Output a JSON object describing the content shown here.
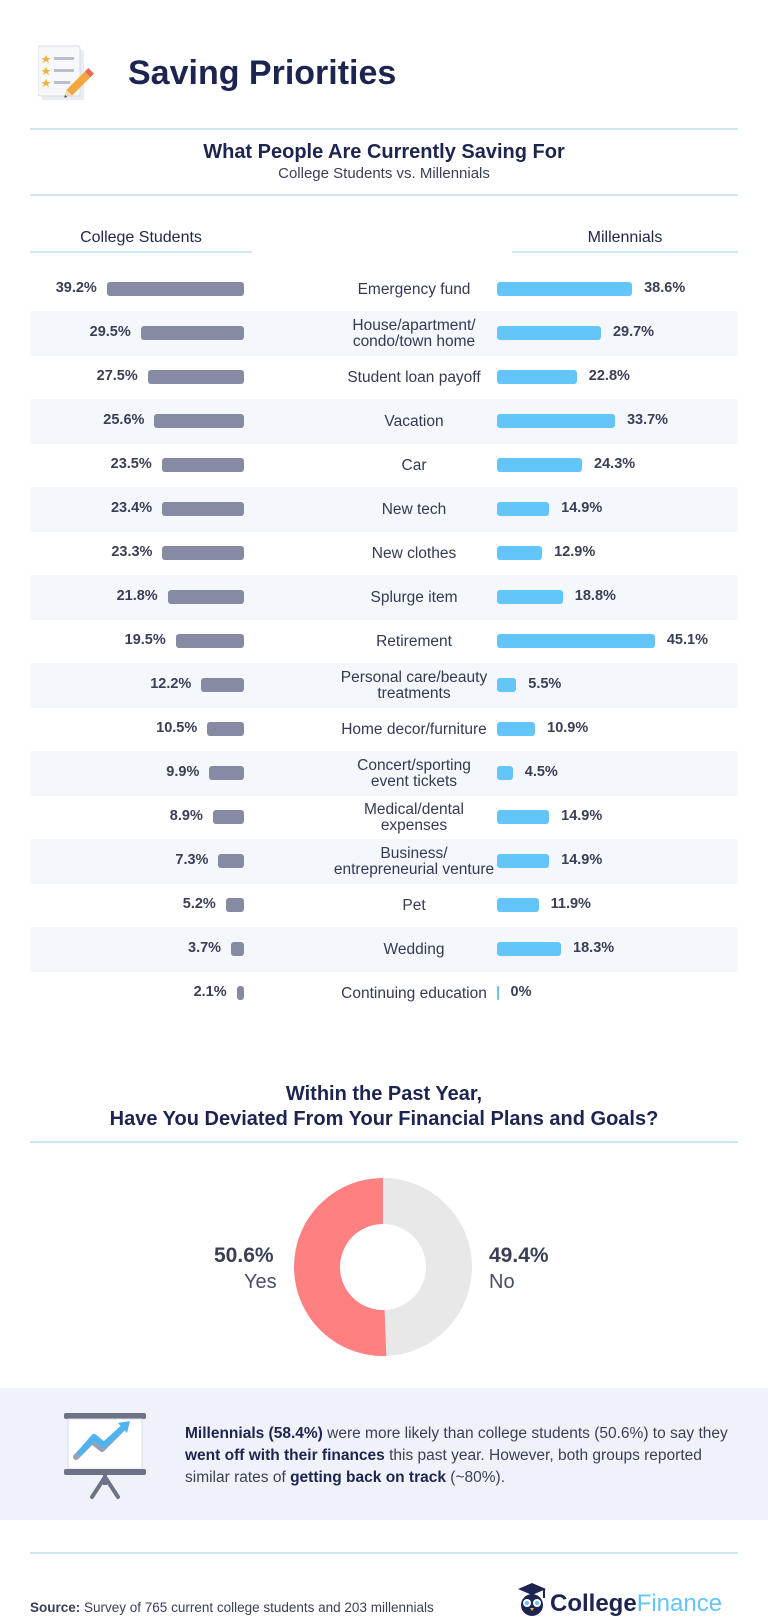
{
  "header": {
    "title": "Saving Priorities"
  },
  "chart_data": {
    "type": "bar",
    "title": "What People Are Currently Saving For",
    "subtitle": "College Students vs. Millennials",
    "categories": [
      [
        "Emergency fund"
      ],
      [
        "House/apartment/",
        "condo/town home"
      ],
      [
        "Student loan payoff"
      ],
      [
        "Vacation"
      ],
      [
        "Car"
      ],
      [
        "New tech"
      ],
      [
        "New clothes"
      ],
      [
        "Splurge item"
      ],
      [
        "Retirement"
      ],
      [
        "Personal care/beauty",
        "treatments"
      ],
      [
        "Home decor/furniture"
      ],
      [
        "Concert/sporting",
        "event tickets"
      ],
      [
        "Medical/dental",
        "expenses"
      ],
      [
        "Business/",
        "entrepreneurial venture"
      ],
      [
        "Pet"
      ],
      [
        "Wedding"
      ],
      [
        "Continuing education"
      ]
    ],
    "series": [
      {
        "name": "College Students",
        "color": "#868ba3",
        "values": [
          39.2,
          29.5,
          27.5,
          25.6,
          23.5,
          23.4,
          23.3,
          21.8,
          19.5,
          12.2,
          10.5,
          9.9,
          8.9,
          7.3,
          5.2,
          3.7,
          2.1
        ],
        "labels": [
          "39.2%",
          "29.5%",
          "27.5%",
          "25.6%",
          "23.5%",
          "23.4%",
          "23.3%",
          "21.8%",
          "19.5%",
          "12.2%",
          "10.5%",
          "9.9%",
          "8.9%",
          "7.3%",
          "5.2%",
          "3.7%",
          "2.1%"
        ]
      },
      {
        "name": "Millennials",
        "color": "#63c5f8",
        "values": [
          38.6,
          29.7,
          22.8,
          33.7,
          24.3,
          14.9,
          12.9,
          18.8,
          45.1,
          5.5,
          10.9,
          4.5,
          14.9,
          14.9,
          11.9,
          18.3,
          0
        ],
        "labels": [
          "38.6%",
          "29.7%",
          "22.8%",
          "33.7%",
          "24.3%",
          "14.9%",
          "12.9%",
          "18.8%",
          "45.1%",
          "5.5%",
          "10.9%",
          "4.5%",
          "14.9%",
          "14.9%",
          "11.9%",
          "18.3%",
          "0%"
        ]
      }
    ],
    "unit": "%"
  },
  "donut_chart": {
    "type": "pie",
    "title_line1": "Within the Past Year,",
    "title_line2": "Have You Deviated From Your Financial Plans and Goals?",
    "slices": [
      {
        "label": "Yes",
        "value": 50.6,
        "value_label": "50.6%",
        "color": "#ff8080"
      },
      {
        "label": "No",
        "value": 49.4,
        "value_label": "49.4%",
        "color": "#e8e8e8"
      }
    ]
  },
  "note": {
    "s1": "Millennials (58.4%)",
    "s2": " were more likely than college students (50.6%) to say they ",
    "s3": "went off with their finances",
    "s4": " this past year. However, both groups reported similar rates of ",
    "s5": "getting back on track",
    "s6": " (~80%)."
  },
  "footer": {
    "source_label": "Source:",
    "source_text": " Survey of 765 current college students and 203 millennials",
    "brand_part1": "College",
    "brand_part2": "Finance"
  },
  "colors": {
    "navy": "#1d2450",
    "accent_blue": "#63c5f8",
    "gray_bar": "#868ba3",
    "pink": "#ff8080"
  }
}
